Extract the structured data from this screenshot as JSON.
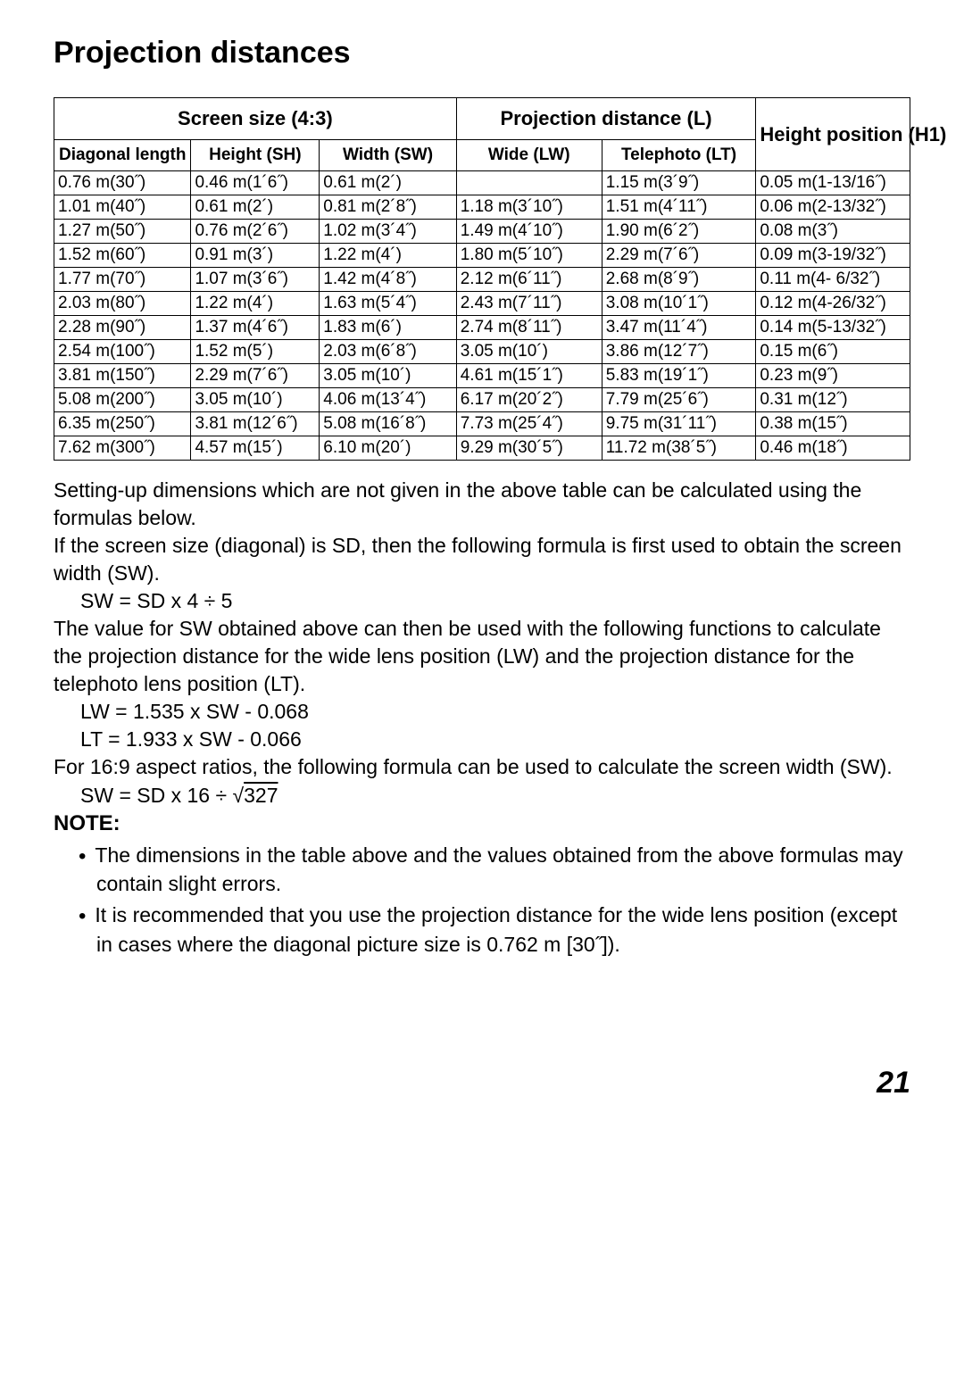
{
  "title": "Projection distances",
  "table": {
    "group_headers": {
      "screen_size": "Screen size (4:3)",
      "projection_distance": "Projection distance (L)",
      "height_position": "Height position (H1)"
    },
    "sub_headers": {
      "diagonal": "Diagonal length",
      "height_sh": "Height (SH)",
      "width_sw": "Width (SW)",
      "wide_lw": "Wide (LW)",
      "telephoto_lt": "Telephoto (LT)"
    },
    "rows": [
      [
        "0.76 m(30˝)",
        "0.46 m(1´6˝)",
        "0.61 m(2´)",
        "",
        "1.15 m(3´9˝)",
        "0.05 m(1-13/16˝)"
      ],
      [
        "1.01 m(40˝)",
        "0.61 m(2´)",
        "0.81 m(2´8˝)",
        "1.18 m(3´10˝)",
        "1.51 m(4´11˝)",
        "0.06 m(2-13/32˝)"
      ],
      [
        "1.27 m(50˝)",
        "0.76 m(2´6˝)",
        "1.02 m(3´4˝)",
        "1.49 m(4´10˝)",
        "1.90 m(6´2˝)",
        "0.08 m(3˝)"
      ],
      [
        "1.52 m(60˝)",
        "0.91 m(3´)",
        "1.22 m(4´)",
        "1.80 m(5´10˝)",
        "2.29 m(7´6˝)",
        "0.09 m(3-19/32˝)"
      ],
      [
        "1.77 m(70˝)",
        "1.07 m(3´6˝)",
        "1.42 m(4´8˝)",
        "2.12 m(6´11˝)",
        "2.68 m(8´9˝)",
        "0.11 m(4- 6/32˝)"
      ],
      [
        "2.03 m(80˝)",
        "1.22 m(4´)",
        "1.63 m(5´4˝)",
        "2.43 m(7´11˝)",
        "3.08 m(10´1˝)",
        "0.12 m(4-26/32˝)"
      ],
      [
        "2.28 m(90˝)",
        "1.37 m(4´6˝)",
        "1.83 m(6´)",
        "2.74 m(8´11˝)",
        "3.47 m(11´4˝)",
        "0.14 m(5-13/32˝)"
      ],
      [
        "2.54 m(100˝)",
        "1.52 m(5´)",
        "2.03 m(6´8˝)",
        "3.05 m(10´)",
        "3.86 m(12´7˝)",
        "0.15 m(6˝)"
      ],
      [
        "3.81 m(150˝)",
        "2.29 m(7´6˝)",
        "3.05 m(10´)",
        "4.61 m(15´1˝)",
        "5.83 m(19´1˝)",
        "0.23 m(9˝)"
      ],
      [
        "5.08 m(200˝)",
        "3.05 m(10´)",
        "4.06 m(13´4˝)",
        "6.17 m(20´2˝)",
        "7.79 m(25´6˝)",
        "0.31 m(12˝)"
      ],
      [
        "6.35 m(250˝)",
        "3.81 m(12´6˝)",
        "5.08 m(16´8˝)",
        "7.73 m(25´4˝)",
        "9.75 m(31´11˝)",
        "0.38 m(15˝)"
      ],
      [
        "7.62 m(300˝)",
        "4.57 m(15´)",
        "6.10 m(20´)",
        "9.29 m(30´5˝)",
        "11.72 m(38´5˝)",
        "0.46 m(18˝)"
      ]
    ],
    "col_widths_pct": [
      16,
      15,
      16,
      17,
      18,
      18
    ]
  },
  "paragraphs": {
    "p1": "Setting-up dimensions which are not given in the above table can be calculated using the formulas below.",
    "p2": "If the screen size (diagonal) is SD, then the following formula is first used to obtain the screen width (SW).",
    "f1": "SW = SD x 4 ÷ 5",
    "p3": "The value for SW obtained above can then be used with the following functions to calculate the projection distance for the wide lens position (LW) and the projection distance for the telephoto lens position (LT).",
    "f2": "LW = 1.535 x SW - 0.068",
    "f3": "LT = 1.933 x SW - 0.066",
    "p4": "For 16:9 aspect ratios, the following formula can be used to calculate the screen width (SW).",
    "f4_prefix": "SW = SD x 16 ÷ √",
    "f4_rad": "327"
  },
  "note": {
    "heading": "NOTE:",
    "items": [
      "The dimensions in the table above and the values obtained from the above formulas may contain slight errors.",
      "It is recommended that you use the projection distance for the wide lens position (except in cases where the diagonal picture size is 0.762 m [30˝])."
    ]
  },
  "page_number": "21"
}
